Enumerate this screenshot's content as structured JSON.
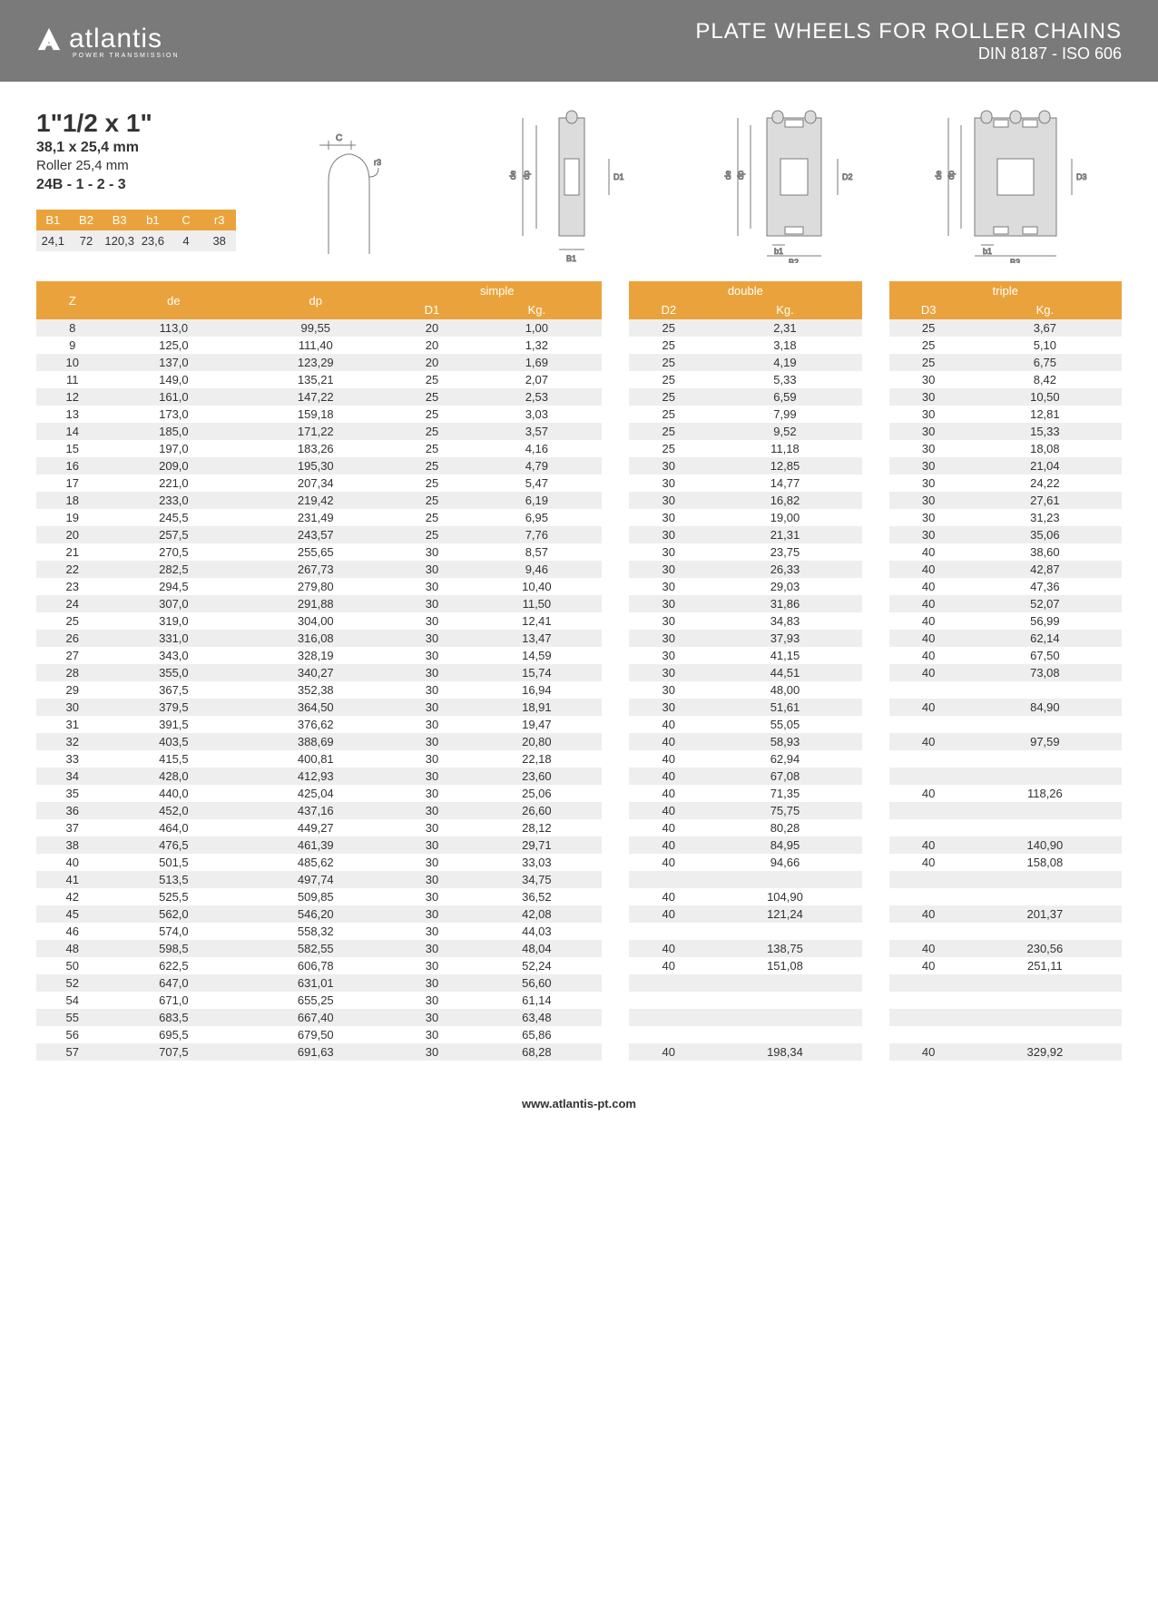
{
  "header": {
    "brand": "atlantis",
    "brand_sub": "POWER TRANSMISSION",
    "title": "PLATE WHEELS FOR ROLLER CHAINS",
    "subtitle": "DIN 8187 - ISO 606"
  },
  "spec": {
    "size": "1\"1/2 x 1\"",
    "mm": "38,1 x 25,4 mm",
    "roller": "Roller 25,4 mm",
    "code": "24B - 1 - 2 - 3"
  },
  "mini": {
    "headers": [
      "B1",
      "B2",
      "B3",
      "b1",
      "C",
      "r3"
    ],
    "values": [
      "24,1",
      "72",
      "120,3",
      "23,6",
      "4",
      "38"
    ]
  },
  "table": {
    "group_headers": [
      "simple",
      "double",
      "triple"
    ],
    "sub_headers": [
      "Z",
      "de",
      "dp",
      "D1",
      "Kg.",
      "D2",
      "Kg.",
      "D3",
      "Kg."
    ],
    "rows": [
      [
        "8",
        "113,0",
        "99,55",
        "20",
        "1,00",
        "25",
        "2,31",
        "25",
        "3,67"
      ],
      [
        "9",
        "125,0",
        "111,40",
        "20",
        "1,32",
        "25",
        "3,18",
        "25",
        "5,10"
      ],
      [
        "10",
        "137,0",
        "123,29",
        "20",
        "1,69",
        "25",
        "4,19",
        "25",
        "6,75"
      ],
      [
        "11",
        "149,0",
        "135,21",
        "25",
        "2,07",
        "25",
        "5,33",
        "30",
        "8,42"
      ],
      [
        "12",
        "161,0",
        "147,22",
        "25",
        "2,53",
        "25",
        "6,59",
        "30",
        "10,50"
      ],
      [
        "13",
        "173,0",
        "159,18",
        "25",
        "3,03",
        "25",
        "7,99",
        "30",
        "12,81"
      ],
      [
        "14",
        "185,0",
        "171,22",
        "25",
        "3,57",
        "25",
        "9,52",
        "30",
        "15,33"
      ],
      [
        "15",
        "197,0",
        "183,26",
        "25",
        "4,16",
        "25",
        "11,18",
        "30",
        "18,08"
      ],
      [
        "16",
        "209,0",
        "195,30",
        "25",
        "4,79",
        "30",
        "12,85",
        "30",
        "21,04"
      ],
      [
        "17",
        "221,0",
        "207,34",
        "25",
        "5,47",
        "30",
        "14,77",
        "30",
        "24,22"
      ],
      [
        "18",
        "233,0",
        "219,42",
        "25",
        "6,19",
        "30",
        "16,82",
        "30",
        "27,61"
      ],
      [
        "19",
        "245,5",
        "231,49",
        "25",
        "6,95",
        "30",
        "19,00",
        "30",
        "31,23"
      ],
      [
        "20",
        "257,5",
        "243,57",
        "25",
        "7,76",
        "30",
        "21,31",
        "30",
        "35,06"
      ],
      [
        "21",
        "270,5",
        "255,65",
        "30",
        "8,57",
        "30",
        "23,75",
        "40",
        "38,60"
      ],
      [
        "22",
        "282,5",
        "267,73",
        "30",
        "9,46",
        "30",
        "26,33",
        "40",
        "42,87"
      ],
      [
        "23",
        "294,5",
        "279,80",
        "30",
        "10,40",
        "30",
        "29,03",
        "40",
        "47,36"
      ],
      [
        "24",
        "307,0",
        "291,88",
        "30",
        "11,50",
        "30",
        "31,86",
        "40",
        "52,07"
      ],
      [
        "25",
        "319,0",
        "304,00",
        "30",
        "12,41",
        "30",
        "34,83",
        "40",
        "56,99"
      ],
      [
        "26",
        "331,0",
        "316,08",
        "30",
        "13,47",
        "30",
        "37,93",
        "40",
        "62,14"
      ],
      [
        "27",
        "343,0",
        "328,19",
        "30",
        "14,59",
        "30",
        "41,15",
        "40",
        "67,50"
      ],
      [
        "28",
        "355,0",
        "340,27",
        "30",
        "15,74",
        "30",
        "44,51",
        "40",
        "73,08"
      ],
      [
        "29",
        "367,5",
        "352,38",
        "30",
        "16,94",
        "30",
        "48,00",
        "",
        ""
      ],
      [
        "30",
        "379,5",
        "364,50",
        "30",
        "18,91",
        "30",
        "51,61",
        "40",
        "84,90"
      ],
      [
        "31",
        "391,5",
        "376,62",
        "30",
        "19,47",
        "40",
        "55,05",
        "",
        ""
      ],
      [
        "32",
        "403,5",
        "388,69",
        "30",
        "20,80",
        "40",
        "58,93",
        "40",
        "97,59"
      ],
      [
        "33",
        "415,5",
        "400,81",
        "30",
        "22,18",
        "40",
        "62,94",
        "",
        ""
      ],
      [
        "34",
        "428,0",
        "412,93",
        "30",
        "23,60",
        "40",
        "67,08",
        "",
        ""
      ],
      [
        "35",
        "440,0",
        "425,04",
        "30",
        "25,06",
        "40",
        "71,35",
        "40",
        "118,26"
      ],
      [
        "36",
        "452,0",
        "437,16",
        "30",
        "26,60",
        "40",
        "75,75",
        "",
        ""
      ],
      [
        "37",
        "464,0",
        "449,27",
        "30",
        "28,12",
        "40",
        "80,28",
        "",
        ""
      ],
      [
        "38",
        "476,5",
        "461,39",
        "30",
        "29,71",
        "40",
        "84,95",
        "40",
        "140,90"
      ],
      [
        "40",
        "501,5",
        "485,62",
        "30",
        "33,03",
        "40",
        "94,66",
        "40",
        "158,08"
      ],
      [
        "41",
        "513,5",
        "497,74",
        "30",
        "34,75",
        "",
        "",
        "",
        ""
      ],
      [
        "42",
        "525,5",
        "509,85",
        "30",
        "36,52",
        "40",
        "104,90",
        "",
        ""
      ],
      [
        "45",
        "562,0",
        "546,20",
        "30",
        "42,08",
        "40",
        "121,24",
        "40",
        "201,37"
      ],
      [
        "46",
        "574,0",
        "558,32",
        "30",
        "44,03",
        "",
        "",
        "",
        ""
      ],
      [
        "48",
        "598,5",
        "582,55",
        "30",
        "48,04",
        "40",
        "138,75",
        "40",
        "230,56"
      ],
      [
        "50",
        "622,5",
        "606,78",
        "30",
        "52,24",
        "40",
        "151,08",
        "40",
        "251,11"
      ],
      [
        "52",
        "647,0",
        "631,01",
        "30",
        "56,60",
        "",
        "",
        "",
        ""
      ],
      [
        "54",
        "671,0",
        "655,25",
        "30",
        "61,14",
        "",
        "",
        "",
        ""
      ],
      [
        "55",
        "683,5",
        "667,40",
        "30",
        "63,48",
        "",
        "",
        "",
        ""
      ],
      [
        "56",
        "695,5",
        "679,50",
        "30",
        "65,86",
        "",
        "",
        "",
        ""
      ],
      [
        "57",
        "707,5",
        "691,63",
        "30",
        "68,28",
        "40",
        "198,34",
        "40",
        "329,92"
      ]
    ]
  },
  "footer": "www.atlantis-pt.com",
  "colors": {
    "header_bg": "#7a7a7a",
    "accent": "#eaa33c",
    "row_alt": "#eeeeee"
  }
}
